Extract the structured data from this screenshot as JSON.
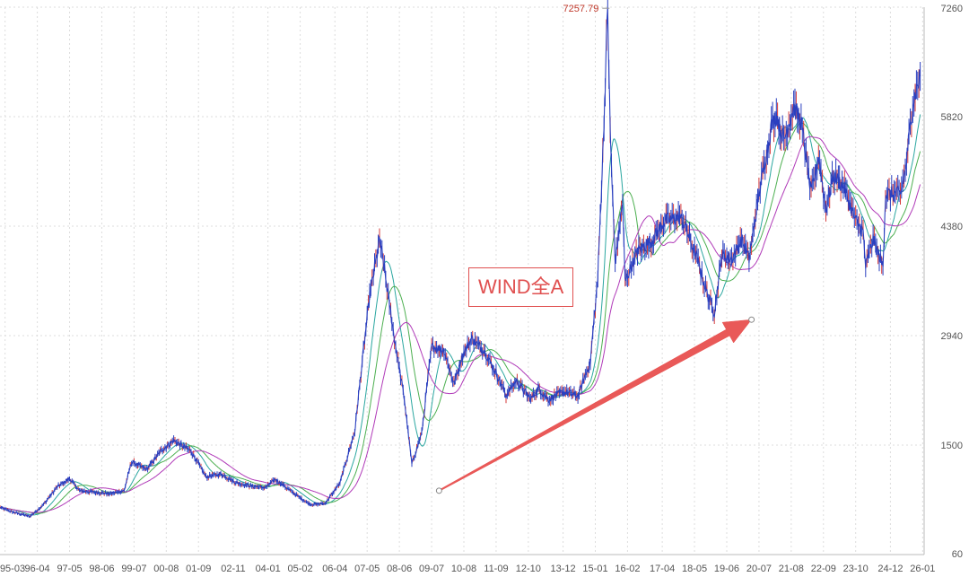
{
  "chart_data": {
    "type": "line",
    "title": "WIND全A",
    "x_tick_labels": [
      "95-03",
      "96-04",
      "97-05",
      "98-06",
      "99-07",
      "00-08",
      "01-09",
      "02-11",
      "04-01",
      "05-02",
      "06-04",
      "07-05",
      "08-06",
      "09-07",
      "10-08",
      "11-09",
      "12-10",
      "13-12",
      "15-01",
      "16-02",
      "17-04",
      "18-05",
      "19-06",
      "20-07",
      "21-08",
      "22-09",
      "23-10",
      "24-12",
      "26-01"
    ],
    "y_ticks": [
      60,
      1500,
      2940,
      4380,
      5820,
      7260
    ],
    "ylim": [
      60,
      7260
    ],
    "grid": true,
    "peak_annotation": {
      "label": "7257.79",
      "value": 7257.79,
      "date": "15-06"
    },
    "arrow_annotation": {
      "from_date": "09-10",
      "from_value": 900,
      "to_date": "20-04",
      "to_value": 3150
    },
    "series": [
      {
        "name": "",
        "role": "price",
        "color": "#2a3fbf",
        "x": [
          "95-01",
          "95-06",
          "96-01",
          "96-06",
          "96-12",
          "97-05",
          "97-09",
          "98-03",
          "98-09",
          "99-03",
          "99-06",
          "99-12",
          "00-06",
          "00-11",
          "01-06",
          "01-12",
          "02-06",
          "02-12",
          "03-06",
          "03-12",
          "04-04",
          "04-12",
          "05-06",
          "05-12",
          "06-06",
          "06-12",
          "07-03",
          "07-06",
          "07-10",
          "07-12",
          "08-04",
          "08-08",
          "08-11",
          "09-03",
          "09-07",
          "09-12",
          "10-04",
          "10-07",
          "10-11",
          "11-04",
          "11-09",
          "12-01",
          "12-05",
          "12-11",
          "13-02",
          "13-06",
          "13-12",
          "14-06",
          "14-11",
          "15-02",
          "15-04",
          "15-06",
          "15-07",
          "15-09",
          "15-12",
          "16-01",
          "16-06",
          "16-12",
          "17-05",
          "17-11",
          "18-01",
          "18-06",
          "18-10",
          "19-01",
          "19-04",
          "19-08",
          "19-12",
          "20-03",
          "20-07",
          "20-12",
          "21-02",
          "21-05",
          "21-09",
          "21-12",
          "22-04",
          "22-07",
          "22-10",
          "23-01",
          "23-05",
          "23-10",
          "24-01",
          "24-02",
          "24-05",
          "24-09",
          "24-10",
          "24-12",
          "25-04",
          "25-06",
          "25-09",
          "25-12"
        ],
        "y": [
          680,
          620,
          560,
          700,
          950,
          1060,
          900,
          880,
          860,
          900,
          1280,
          1180,
          1430,
          1560,
          1420,
          1080,
          1120,
          1010,
          960,
          940,
          1050,
          850,
          720,
          730,
          1000,
          1680,
          2600,
          3450,
          4200,
          3800,
          2900,
          2100,
          1250,
          1650,
          2800,
          2750,
          2300,
          2650,
          2900,
          2750,
          2450,
          2150,
          2350,
          2100,
          2250,
          2100,
          2200,
          2150,
          2600,
          3700,
          5300,
          7257,
          5600,
          3900,
          4700,
          3650,
          4050,
          4200,
          4450,
          4500,
          4400,
          3950,
          3500,
          3250,
          4000,
          3950,
          4200,
          3950,
          4800,
          5700,
          5850,
          5500,
          5950,
          5750,
          4800,
          5300,
          4600,
          5050,
          4900,
          4450,
          4300,
          3850,
          4200,
          3850,
          4800,
          4800,
          4800,
          5100,
          6000,
          6350
        ]
      },
      {
        "name": "",
        "role": "ma-20",
        "color": "#2aa6a0",
        "smooth_window": 3
      },
      {
        "name": "",
        "role": "ma-60",
        "color": "#4caf50",
        "smooth_window": 6
      },
      {
        "name": "",
        "role": "ma-120",
        "color": "#b03ab8",
        "smooth_window": 10
      }
    ]
  }
}
